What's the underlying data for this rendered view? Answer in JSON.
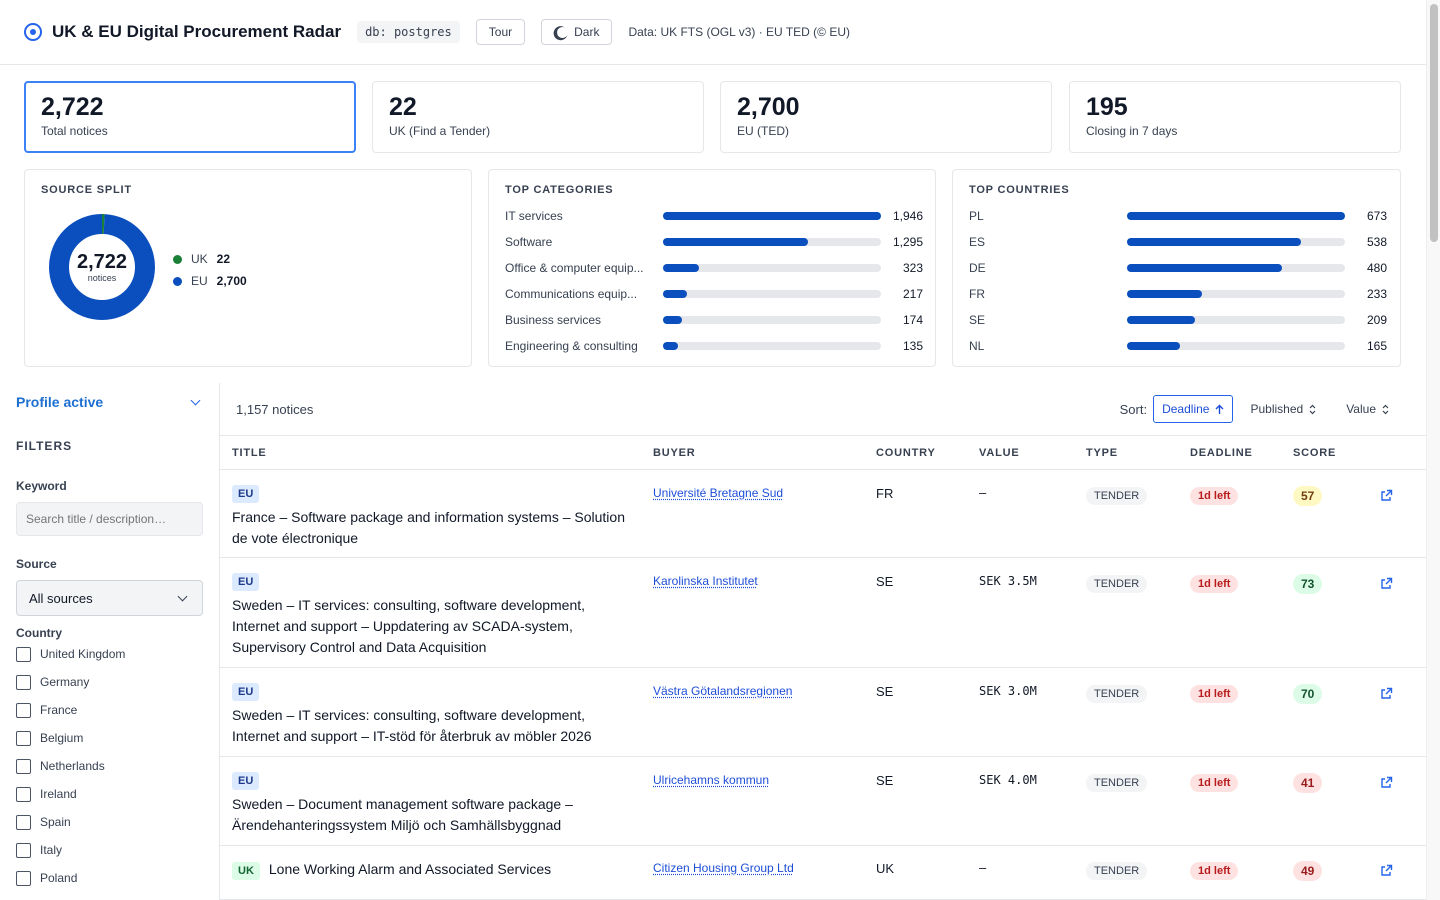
{
  "header": {
    "title": "UK & EU Digital Procurement Radar",
    "db_chip": "db: postgres",
    "tour_label": "Tour",
    "dark_label": "Dark",
    "data_credit": "Data: UK FTS (OGL v3) · EU TED (© EU)"
  },
  "stats": [
    {
      "value": "2,722",
      "label": "Total notices"
    },
    {
      "value": "22",
      "label": "UK (Find a Tender)"
    },
    {
      "value": "2,700",
      "label": "EU (TED)"
    },
    {
      "value": "195",
      "label": "Closing in 7 days"
    }
  ],
  "source_split": {
    "title": "SOURCE SPLIT",
    "total": "2,722",
    "total_sub": "notices",
    "slices": [
      {
        "name": "UK",
        "value": 22,
        "display": "22",
        "color": "#1a7f37"
      },
      {
        "name": "EU",
        "value": 2700,
        "display": "2,700",
        "color": "#0b4fbf"
      }
    ]
  },
  "top_categories": {
    "title": "TOP CATEGORIES",
    "items": [
      {
        "label": "IT services",
        "value": 1946,
        "display": "1,946"
      },
      {
        "label": "Software",
        "value": 1295,
        "display": "1,295"
      },
      {
        "label": "Office & computer equip...",
        "value": 323,
        "display": "323"
      },
      {
        "label": "Communications equip...",
        "value": 217,
        "display": "217"
      },
      {
        "label": "Business services",
        "value": 174,
        "display": "174"
      },
      {
        "label": "Engineering & consulting",
        "value": 135,
        "display": "135"
      }
    ]
  },
  "top_countries": {
    "title": "TOP COUNTRIES",
    "items": [
      {
        "label": "PL",
        "value": 673,
        "display": "673"
      },
      {
        "label": "ES",
        "value": 538,
        "display": "538"
      },
      {
        "label": "DE",
        "value": 480,
        "display": "480"
      },
      {
        "label": "FR",
        "value": 233,
        "display": "233"
      },
      {
        "label": "SE",
        "value": 209,
        "display": "209"
      },
      {
        "label": "NL",
        "value": 165,
        "display": "165"
      }
    ]
  },
  "sidebar": {
    "profile_label": "Profile active",
    "filters_heading": "FILTERS",
    "keyword_label": "Keyword",
    "keyword_placeholder": "Search title / description…",
    "source_label": "Source",
    "source_selected": "All sources",
    "country_label": "Country",
    "countries": [
      "United Kingdom",
      "Germany",
      "France",
      "Belgium",
      "Netherlands",
      "Ireland",
      "Spain",
      "Italy",
      "Poland"
    ]
  },
  "results": {
    "count_text": "1,157 notices",
    "sort_label": "Sort:",
    "sort_options": [
      "Deadline",
      "Published",
      "Value"
    ],
    "sort_active": "Deadline",
    "columns": [
      "TITLE",
      "BUYER",
      "COUNTRY",
      "VALUE",
      "TYPE",
      "DEADLINE",
      "SCORE"
    ],
    "rows": [
      {
        "source": "EU",
        "title": "France – Software package and information systems – Solution de vote électronique",
        "buyer": "Université Bretagne Sud",
        "country": "FR",
        "value": "—",
        "type": "TENDER",
        "deadline": "1d left",
        "score": "57",
        "score_level": "mid"
      },
      {
        "source": "EU",
        "title": "Sweden – IT services: consulting, software development, Internet and support – Uppdatering av SCADA-system, Supervisory Control and Data Acquisition",
        "buyer": "Karolinska Institutet",
        "country": "SE",
        "value": "SEK 3.5M",
        "type": "TENDER",
        "deadline": "1d left",
        "score": "73",
        "score_level": "hi"
      },
      {
        "source": "EU",
        "title": "Sweden – IT services: consulting, software development, Internet and support – IT-stöd för återbruk av möbler 2026",
        "buyer": "Västra Götalandsregionen",
        "country": "SE",
        "value": "SEK 3.0M",
        "type": "TENDER",
        "deadline": "1d left",
        "score": "70",
        "score_level": "hi"
      },
      {
        "source": "EU",
        "title": "Sweden – Document management software package – Ärendehanteringssystem Miljö och Samhällsbyggnad",
        "buyer": "Ulricehamns kommun",
        "country": "SE",
        "value": "SEK 4.0M",
        "type": "TENDER",
        "deadline": "1d left",
        "score": "41",
        "score_level": "lo"
      },
      {
        "source": "UK",
        "title": "Lone Working Alarm and Associated Services",
        "buyer": "Citizen Housing Group Ltd",
        "country": "UK",
        "value": "—",
        "type": "TENDER",
        "deadline": "1d left",
        "score": "49",
        "score_level": "lo"
      }
    ]
  }
}
